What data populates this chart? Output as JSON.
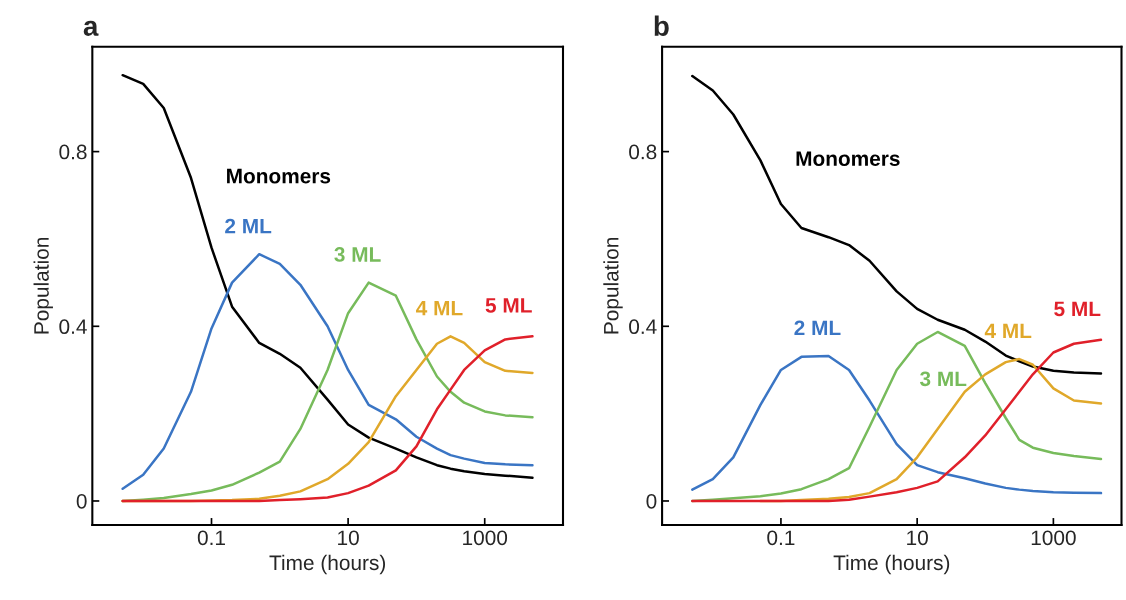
{
  "chart_data": [
    {
      "type": "line",
      "title": "a",
      "xlabel": "Time (hours)",
      "ylabel": "Population",
      "log": "x",
      "grid": false,
      "legend": false,
      "marker": "none",
      "line_style": "solid",
      "x": [
        0.005,
        0.01,
        0.02,
        0.05,
        0.1,
        0.2,
        0.5,
        1,
        2,
        5,
        10,
        20,
        50,
        100,
        200,
        316,
        500,
        1000,
        2000,
        5000
      ],
      "xlim": [
        0.0018,
        14000
      ],
      "xticks": [
        0.1,
        10,
        1000
      ],
      "ylim": [
        -0.055,
        1.04
      ],
      "yticks": [
        0,
        0.4,
        0.8
      ],
      "series": [
        {
          "name": "Monomers",
          "color": "#000000",
          "values": [
            0.975,
            0.955,
            0.9,
            0.74,
            0.58,
            0.445,
            0.362,
            0.337,
            0.305,
            0.232,
            0.175,
            0.145,
            0.12,
            0.1,
            0.082,
            0.074,
            0.068,
            0.062,
            0.058,
            0.053
          ]
        },
        {
          "name": "2 ML",
          "color": "#3a75c4",
          "values": [
            0.028,
            0.06,
            0.12,
            0.25,
            0.395,
            0.5,
            0.565,
            0.543,
            0.495,
            0.4,
            0.3,
            0.22,
            0.187,
            0.147,
            0.12,
            0.105,
            0.097,
            0.087,
            0.084,
            0.082
          ]
        },
        {
          "name": "3 ML",
          "color": "#77bb5b",
          "values": [
            0,
            0.003,
            0.007,
            0.016,
            0.024,
            0.037,
            0.065,
            0.09,
            0.165,
            0.3,
            0.43,
            0.5,
            0.47,
            0.37,
            0.285,
            0.25,
            0.225,
            0.205,
            0.196,
            0.192
          ]
        },
        {
          "name": "4 ML",
          "color": "#e0a82a",
          "values": [
            0,
            0,
            0,
            0,
            0.001,
            0.002,
            0.005,
            0.012,
            0.022,
            0.05,
            0.085,
            0.135,
            0.24,
            0.3,
            0.36,
            0.377,
            0.362,
            0.318,
            0.298,
            0.293
          ]
        },
        {
          "name": "5 ML",
          "color": "#e0202a",
          "values": [
            0,
            0,
            0,
            0,
            0,
            0,
            0,
            0.002,
            0.004,
            0.008,
            0.018,
            0.035,
            0.07,
            0.125,
            0.21,
            0.255,
            0.3,
            0.345,
            0.37,
            0.377
          ]
        }
      ]
    },
    {
      "type": "line",
      "title": "b",
      "xlabel": "Time (hours)",
      "ylabel": "Population",
      "log": "x",
      "grid": false,
      "legend": false,
      "marker": "none",
      "line_style": "solid",
      "x": [
        0.005,
        0.01,
        0.02,
        0.05,
        0.1,
        0.2,
        0.5,
        1,
        2,
        5,
        10,
        20,
        50,
        100,
        200,
        316,
        500,
        1000,
        2000,
        5000
      ],
      "xlim": [
        0.0018,
        10000
      ],
      "xticks": [
        0.1,
        10,
        1000
      ],
      "ylim": [
        -0.055,
        1.04
      ],
      "yticks": [
        0,
        0.4,
        0.8
      ],
      "series": [
        {
          "name": "Monomers",
          "color": "#000000",
          "values": [
            0.973,
            0.94,
            0.885,
            0.78,
            0.68,
            0.625,
            0.604,
            0.586,
            0.55,
            0.48,
            0.44,
            0.415,
            0.392,
            0.365,
            0.333,
            0.32,
            0.308,
            0.298,
            0.294,
            0.292
          ]
        },
        {
          "name": "2 ML",
          "color": "#3a75c4",
          "values": [
            0.026,
            0.05,
            0.1,
            0.22,
            0.3,
            0.33,
            0.332,
            0.3,
            0.23,
            0.13,
            0.082,
            0.066,
            0.052,
            0.04,
            0.03,
            0.026,
            0.023,
            0.02,
            0.019,
            0.018
          ]
        },
        {
          "name": "3 ML",
          "color": "#77bb5b",
          "values": [
            0,
            0.003,
            0.006,
            0.011,
            0.017,
            0.027,
            0.05,
            0.075,
            0.17,
            0.3,
            0.36,
            0.387,
            0.355,
            0.27,
            0.19,
            0.14,
            0.122,
            0.11,
            0.103,
            0.096
          ]
        },
        {
          "name": "4 ML",
          "color": "#e0a82a",
          "values": [
            null,
            null,
            null,
            0,
            0,
            0.002,
            0.005,
            0.009,
            0.018,
            0.05,
            0.1,
            0.165,
            0.25,
            0.29,
            0.318,
            0.325,
            0.312,
            0.258,
            0.23,
            0.223
          ]
        },
        {
          "name": "5 ML",
          "color": "#e0202a",
          "values": [
            0,
            0,
            0,
            0,
            0,
            0,
            0,
            0.003,
            0.01,
            0.02,
            0.03,
            0.045,
            0.1,
            0.15,
            0.21,
            0.25,
            0.29,
            0.34,
            0.36,
            0.369
          ]
        }
      ]
    }
  ]
}
